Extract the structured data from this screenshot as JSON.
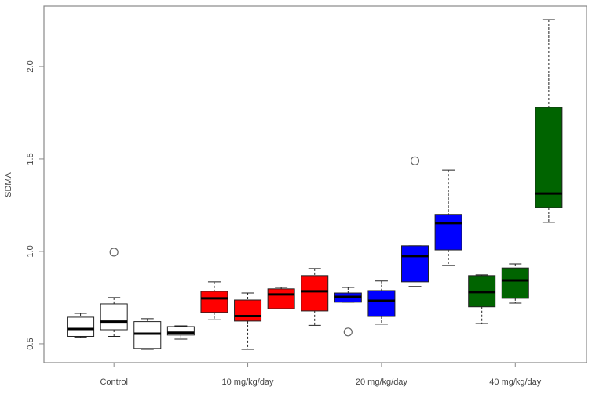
{
  "chart_data": {
    "type": "boxplot",
    "title": "",
    "xlabel": "",
    "ylabel": "SDMA",
    "ylim": [
      0.398,
      2.326
    ],
    "yticks": [
      "0.5",
      "1.0",
      "1.5",
      "2.0"
    ],
    "ytick_values": [
      0.5,
      1.0,
      1.5,
      2.0
    ],
    "group_labels": [
      "Control",
      "10 mg/kg/day",
      "20 mg/kg/day",
      "40 mg/kg/day"
    ],
    "group_label_positions": [
      2,
      6,
      10,
      14
    ],
    "colors": {
      "Control": "#ffffff",
      "10 mg/kg/day": "#ff0000",
      "20 mg/kg/day": "#0000ff",
      "40 mg/kg/day": "#006400"
    },
    "boxes": [
      {
        "group": "Control",
        "pos": 1,
        "lower": 0.535,
        "q1": 0.54,
        "median": 0.58,
        "q3": 0.644,
        "upper": 0.665,
        "outliers": []
      },
      {
        "group": "Control",
        "pos": 2,
        "lower": 0.54,
        "q1": 0.576,
        "median": 0.62,
        "q3": 0.716,
        "upper": 0.75,
        "outliers": [
          0.996
        ]
      },
      {
        "group": "Control",
        "pos": 3,
        "lower": 0.47,
        "q1": 0.475,
        "median": 0.555,
        "q3": 0.62,
        "upper": 0.636,
        "outliers": []
      },
      {
        "group": "Control",
        "pos": 4,
        "lower": 0.525,
        "q1": 0.547,
        "median": 0.56,
        "q3": 0.593,
        "upper": 0.597,
        "outliers": []
      },
      {
        "group": "10 mg/kg/day",
        "pos": 5,
        "lower": 0.63,
        "q1": 0.67,
        "median": 0.746,
        "q3": 0.784,
        "upper": 0.835,
        "outliers": []
      },
      {
        "group": "10 mg/kg/day",
        "pos": 6,
        "lower": 0.47,
        "q1": 0.623,
        "median": 0.65,
        "q3": 0.737,
        "upper": 0.775,
        "outliers": []
      },
      {
        "group": "10 mg/kg/day",
        "pos": 7,
        "lower": 0.69,
        "q1": 0.69,
        "median": 0.767,
        "q3": 0.797,
        "upper": 0.805,
        "outliers": []
      },
      {
        "group": "10 mg/kg/day",
        "pos": 8,
        "lower": 0.6,
        "q1": 0.678,
        "median": 0.784,
        "q3": 0.869,
        "upper": 0.907,
        "outliers": []
      },
      {
        "group": "20 mg/kg/day",
        "pos": 9,
        "lower": 0.725,
        "q1": 0.725,
        "median": 0.754,
        "q3": 0.775,
        "upper": 0.805,
        "outliers": [
          0.564
        ]
      },
      {
        "group": "20 mg/kg/day",
        "pos": 10,
        "lower": 0.606,
        "q1": 0.648,
        "median": 0.733,
        "q3": 0.788,
        "upper": 0.84,
        "outliers": []
      },
      {
        "group": "20 mg/kg/day",
        "pos": 11,
        "lower": 0.81,
        "q1": 0.835,
        "median": 0.975,
        "q3": 1.03,
        "upper": 1.03,
        "outliers": [
          1.49
        ]
      },
      {
        "group": "20 mg/kg/day",
        "pos": 12,
        "lower": 0.924,
        "q1": 1.008,
        "median": 1.153,
        "q3": 1.2,
        "upper": 1.44,
        "outliers": []
      },
      {
        "group": "40 mg/kg/day",
        "pos": 13,
        "lower": 0.61,
        "q1": 0.7,
        "median": 0.78,
        "q3": 0.869,
        "upper": 0.873,
        "outliers": []
      },
      {
        "group": "40 mg/kg/day",
        "pos": 14,
        "lower": 0.72,
        "q1": 0.746,
        "median": 0.843,
        "q3": 0.91,
        "upper": 0.932,
        "outliers": []
      },
      {
        "group": "40 mg/kg/day",
        "pos": 15,
        "lower": 1.157,
        "q1": 1.237,
        "median": 1.313,
        "q3": 1.78,
        "upper": 2.254,
        "outliers": []
      }
    ],
    "grid": false,
    "legend": "none"
  }
}
